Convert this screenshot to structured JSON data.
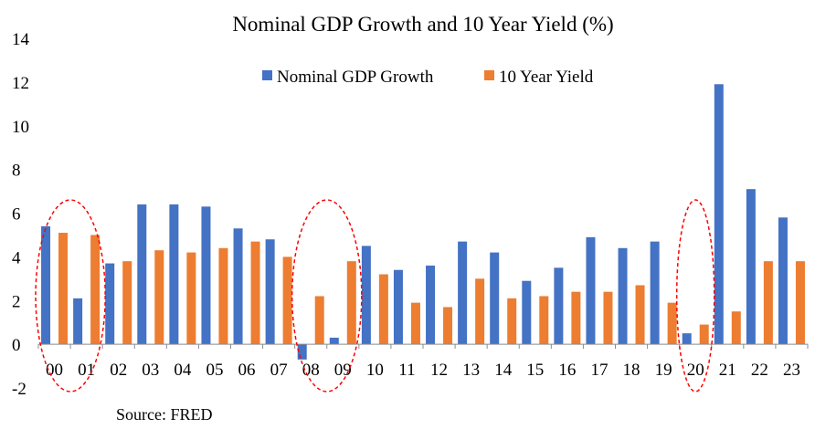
{
  "chart_data": {
    "type": "bar",
    "title": "Nominal GDP Growth and 10 Year Yield (%)",
    "xlabel": "",
    "ylabel": "",
    "categories": [
      "00",
      "01",
      "02",
      "03",
      "04",
      "05",
      "06",
      "07",
      "08",
      "09",
      "10",
      "11",
      "12",
      "13",
      "14",
      "15",
      "16",
      "17",
      "18",
      "19",
      "20",
      "21",
      "22",
      "23"
    ],
    "series": [
      {
        "name": "Nominal GDP Growth",
        "color": "#4472C4",
        "values": [
          5.4,
          2.1,
          3.7,
          6.4,
          6.4,
          6.3,
          5.3,
          4.8,
          -0.7,
          0.3,
          4.5,
          3.4,
          3.6,
          4.7,
          4.2,
          2.9,
          3.5,
          4.9,
          4.4,
          4.7,
          0.5,
          11.9,
          7.1,
          5.8
        ]
      },
      {
        "name": "10 Year Yield",
        "color": "#ED7D31",
        "values": [
          5.1,
          5.0,
          3.8,
          4.3,
          4.2,
          4.4,
          4.7,
          4.0,
          2.2,
          3.8,
          3.2,
          1.9,
          1.7,
          3.0,
          2.1,
          2.2,
          2.4,
          2.4,
          2.7,
          1.9,
          0.9,
          1.5,
          3.8,
          3.8
        ]
      }
    ],
    "ylim": [
      -2,
      14
    ],
    "yticks": [
      -2,
      0,
      2,
      4,
      6,
      8,
      10,
      12,
      14
    ],
    "grid": false,
    "legend": "top-center",
    "annotations": [
      {
        "shape": "dashed-ellipse",
        "color": "#FF0000",
        "categories": [
          "00",
          "01"
        ]
      },
      {
        "shape": "dashed-ellipse",
        "color": "#FF0000",
        "categories": [
          "08",
          "09"
        ]
      },
      {
        "shape": "dashed-ellipse",
        "color": "#FF0000",
        "categories": [
          "20"
        ]
      }
    ],
    "source": "Source: FRED"
  }
}
